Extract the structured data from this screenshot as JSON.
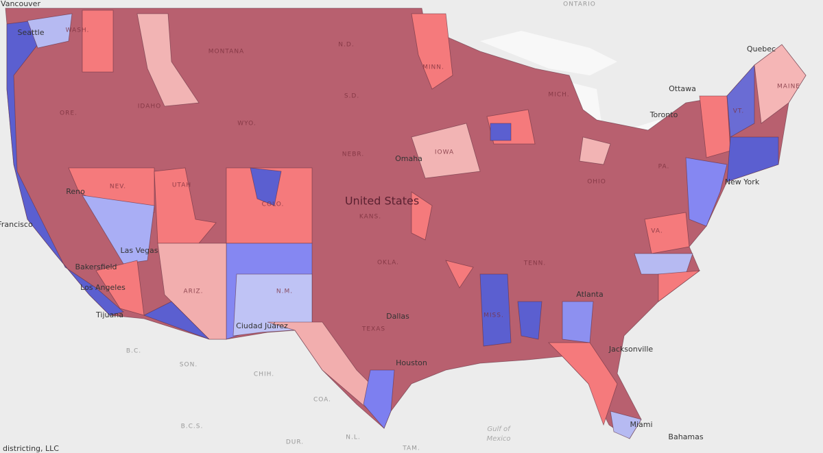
{
  "places": [
    "Vancouver",
    "ONTARIO",
    "Quebec",
    "Ottawa",
    "Toronto",
    "New York",
    "MAINE",
    "VT.",
    "WASH.",
    "Seattle",
    "MONTANA",
    "N.D.",
    "MINN.",
    "S.D.",
    "MICH.",
    "IDAHO",
    "ORE.",
    "WYO.",
    "NEBR.",
    "IOWA",
    "Omaha",
    "PA.",
    "NEV.",
    "UTAH",
    "COLO.",
    "United States",
    "KANS.",
    "OHIO",
    "Francisco",
    "Reno",
    "Las Vegas",
    "Bakersfield",
    "Los Angeles",
    "Tijuana",
    "ARIZ.",
    "N.M.",
    "OKLA.",
    "Ciudad Juárez",
    "TEXAS",
    "Dallas",
    "Houston",
    "MISS.",
    "Atlanta",
    "Jacksonville",
    "Miami",
    "Bahamas",
    "Gulf of",
    "Mexico",
    "B.C.",
    "SON.",
    "CHIH.",
    "COA.",
    "N.L.",
    "DUR.",
    "TAM.",
    "B.C.S.",
    "VA.",
    "TENN."
  ],
  "attribution": "districting, LLC"
}
